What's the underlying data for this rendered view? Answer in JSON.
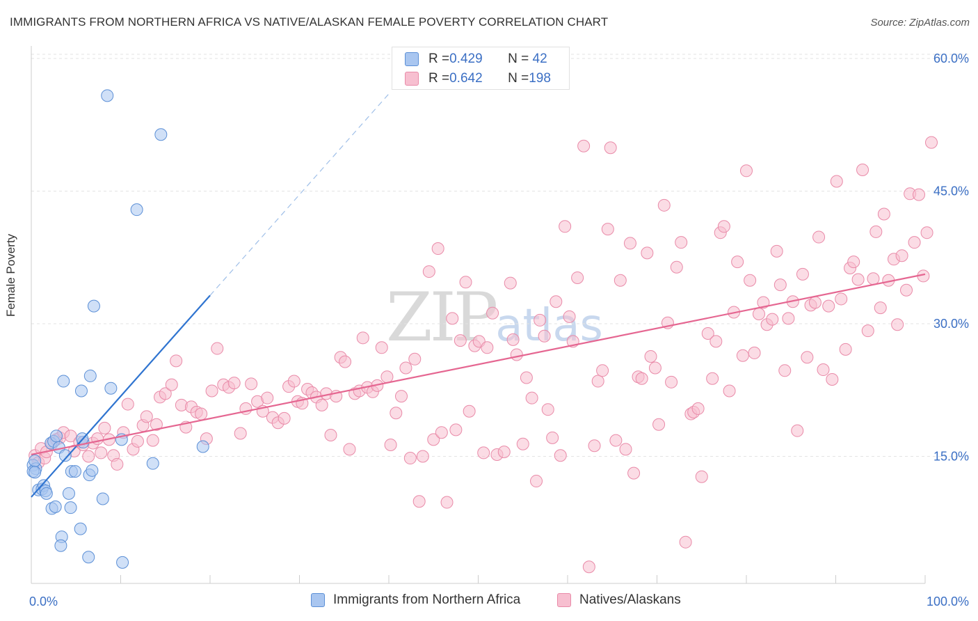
{
  "header": {
    "title": "IMMIGRANTS FROM NORTHERN AFRICA VS NATIVE/ALASKAN FEMALE POVERTY CORRELATION CHART",
    "source": "Source: ZipAtlas.com"
  },
  "watermark": {
    "zip": "ZIP",
    "atlas": "atlas"
  },
  "colors": {
    "blue_fill": "#a9c6f0",
    "blue_stroke": "#5b8fd6",
    "blue_line": "#2f74d0",
    "pink_fill": "#f7bfd0",
    "pink_stroke": "#e98aa8",
    "pink_line": "#e56691",
    "tick_label": "#3b6fc4",
    "grid": "#e3e3e3"
  },
  "stats": [
    {
      "r_label": "R = ",
      "r": "0.429",
      "n_label": "N = ",
      "n": " 42"
    },
    {
      "r_label": "R = ",
      "r": "0.642",
      "n_label": "N = ",
      "n": "198"
    }
  ],
  "chart_data": {
    "type": "scatter",
    "title": "IMMIGRANTS FROM NORTHERN AFRICA VS NATIVE/ALASKAN FEMALE POVERTY CORRELATION CHART",
    "xlabel": "",
    "ylabel": "Female Poverty",
    "xlim": [
      0,
      100
    ],
    "ylim": [
      0,
      65
    ],
    "x_tick_labels": [
      "0.0%",
      "100.0%"
    ],
    "y_ticks": [
      15,
      30,
      45,
      60
    ],
    "y_tick_labels": [
      "15.0%",
      "30.0%",
      "45.0%",
      "60.0%"
    ],
    "grid": "horizontal dashed",
    "legend": "bottom-center",
    "series": [
      {
        "name": "Immigrants from Northern Africa",
        "color": "#a9c6f0",
        "trend": {
          "x": [
            0,
            20
          ],
          "y": [
            10.4,
            33.2
          ],
          "dashed_to": [
            40,
            56
          ]
        },
        "points": [
          [
            8.5,
            55.8
          ],
          [
            14.5,
            51.4
          ],
          [
            11.8,
            42.9
          ],
          [
            7.0,
            32.0
          ],
          [
            3.6,
            23.5
          ],
          [
            6.6,
            24.1
          ],
          [
            5.6,
            22.4
          ],
          [
            8.9,
            22.7
          ],
          [
            19.2,
            16.1
          ],
          [
            10.1,
            16.9
          ],
          [
            0.2,
            14.0
          ],
          [
            0.5,
            13.6
          ],
          [
            0.2,
            13.3
          ],
          [
            0.4,
            13.2
          ],
          [
            0.8,
            11.2
          ],
          [
            1.2,
            11.3
          ],
          [
            1.4,
            11.7
          ],
          [
            1.6,
            11.1
          ],
          [
            1.7,
            10.8
          ],
          [
            2.2,
            16.5
          ],
          [
            2.5,
            16.7
          ],
          [
            2.8,
            17.3
          ],
          [
            3.1,
            16.0
          ],
          [
            3.8,
            15.1
          ],
          [
            4.5,
            13.3
          ],
          [
            4.9,
            13.3
          ],
          [
            6.5,
            12.9
          ],
          [
            6.8,
            13.4
          ],
          [
            5.8,
            16.6
          ],
          [
            5.7,
            17.0
          ],
          [
            2.3,
            9.1
          ],
          [
            2.7,
            9.3
          ],
          [
            4.2,
            10.8
          ],
          [
            4.4,
            9.2
          ],
          [
            8.0,
            10.2
          ],
          [
            3.4,
            5.9
          ],
          [
            3.3,
            4.9
          ],
          [
            5.5,
            6.8
          ],
          [
            6.4,
            3.6
          ],
          [
            10.2,
            3.0
          ],
          [
            13.6,
            14.2
          ],
          [
            0.4,
            14.5
          ]
        ]
      },
      {
        "name": "Natives/Alaskans",
        "color": "#f7bfd0",
        "trend": {
          "x": [
            0,
            100
          ],
          "y": [
            15.2,
            35.6
          ]
        },
        "points": [
          [
            0.4,
            15.1
          ],
          [
            0.8,
            14.3
          ],
          [
            1.1,
            15.9
          ],
          [
            1.5,
            14.8
          ],
          [
            1.7,
            15.5
          ],
          [
            2.3,
            16.4
          ],
          [
            2.8,
            16.9
          ],
          [
            3.2,
            17.1
          ],
          [
            3.6,
            17.7
          ],
          [
            4.4,
            17.3
          ],
          [
            4.8,
            15.6
          ],
          [
            5.4,
            16.6
          ],
          [
            5.8,
            16.3
          ],
          [
            6.4,
            15.0
          ],
          [
            6.9,
            16.5
          ],
          [
            7.4,
            17.0
          ],
          [
            7.8,
            15.4
          ],
          [
            8.2,
            18.2
          ],
          [
            8.7,
            16.9
          ],
          [
            9.2,
            15.1
          ],
          [
            9.6,
            14.1
          ],
          [
            10.3,
            17.7
          ],
          [
            10.8,
            20.9
          ],
          [
            11.4,
            15.8
          ],
          [
            11.9,
            16.7
          ],
          [
            12.5,
            18.5
          ],
          [
            12.9,
            19.5
          ],
          [
            13.6,
            16.8
          ],
          [
            14.0,
            18.6
          ],
          [
            14.4,
            21.7
          ],
          [
            15.0,
            22.1
          ],
          [
            15.7,
            23.1
          ],
          [
            16.2,
            25.8
          ],
          [
            16.8,
            20.8
          ],
          [
            17.3,
            18.3
          ],
          [
            17.9,
            20.6
          ],
          [
            18.5,
            20.0
          ],
          [
            19.0,
            19.8
          ],
          [
            19.6,
            17.0
          ],
          [
            20.2,
            22.4
          ],
          [
            20.8,
            27.2
          ],
          [
            21.5,
            23.1
          ],
          [
            22.1,
            22.8
          ],
          [
            22.7,
            23.3
          ],
          [
            23.4,
            17.6
          ],
          [
            24.0,
            20.4
          ],
          [
            24.6,
            23.2
          ],
          [
            25.3,
            21.2
          ],
          [
            25.9,
            20.1
          ],
          [
            26.4,
            21.6
          ],
          [
            27.0,
            19.4
          ],
          [
            27.6,
            18.8
          ],
          [
            28.3,
            19.3
          ],
          [
            28.8,
            22.9
          ],
          [
            29.4,
            23.5
          ],
          [
            29.8,
            21.2
          ],
          [
            30.3,
            21.0
          ],
          [
            30.9,
            22.6
          ],
          [
            31.4,
            22.2
          ],
          [
            31.9,
            21.7
          ],
          [
            32.5,
            20.8
          ],
          [
            33.0,
            22.1
          ],
          [
            33.5,
            17.4
          ],
          [
            34.1,
            21.8
          ],
          [
            34.6,
            26.2
          ],
          [
            35.1,
            25.7
          ],
          [
            35.6,
            15.8
          ],
          [
            36.2,
            22.1
          ],
          [
            36.7,
            22.4
          ],
          [
            37.1,
            28.4
          ],
          [
            37.6,
            22.8
          ],
          [
            38.2,
            22.3
          ],
          [
            38.7,
            23.0
          ],
          [
            39.2,
            27.3
          ],
          [
            39.8,
            24.0
          ],
          [
            40.2,
            16.3
          ],
          [
            40.8,
            19.9
          ],
          [
            41.4,
            21.8
          ],
          [
            41.9,
            25.0
          ],
          [
            42.4,
            14.8
          ],
          [
            42.9,
            26.0
          ],
          [
            43.4,
            9.9
          ],
          [
            43.8,
            15.0
          ],
          [
            44.5,
            35.9
          ],
          [
            45.0,
            16.9
          ],
          [
            45.5,
            38.5
          ],
          [
            45.9,
            17.7
          ],
          [
            46.5,
            9.8
          ],
          [
            47.1,
            30.6
          ],
          [
            47.5,
            18.0
          ],
          [
            48.0,
            28.1
          ],
          [
            48.6,
            34.7
          ],
          [
            49.0,
            20.1
          ],
          [
            49.6,
            27.5
          ],
          [
            50.1,
            28.0
          ],
          [
            50.6,
            15.4
          ],
          [
            51.0,
            27.3
          ],
          [
            51.6,
            31.2
          ],
          [
            52.1,
            15.2
          ],
          [
            52.9,
            15.5
          ],
          [
            53.6,
            34.6
          ],
          [
            53.9,
            28.2
          ],
          [
            54.3,
            26.5
          ],
          [
            55.0,
            16.4
          ],
          [
            55.4,
            23.9
          ],
          [
            56.0,
            21.6
          ],
          [
            56.5,
            12.2
          ],
          [
            56.9,
            30.4
          ],
          [
            57.4,
            28.6
          ],
          [
            57.8,
            20.3
          ],
          [
            58.3,
            17.1
          ],
          [
            58.7,
            32.5
          ],
          [
            59.2,
            15.1
          ],
          [
            59.7,
            41.0
          ],
          [
            60.2,
            30.8
          ],
          [
            60.6,
            28.0
          ],
          [
            61.1,
            35.2
          ],
          [
            61.8,
            50.1
          ],
          [
            62.4,
            2.5
          ],
          [
            63.0,
            16.2
          ],
          [
            63.4,
            23.5
          ],
          [
            63.9,
            24.7
          ],
          [
            64.5,
            40.7
          ],
          [
            64.8,
            49.9
          ],
          [
            65.4,
            16.8
          ],
          [
            65.9,
            34.9
          ],
          [
            66.5,
            15.8
          ],
          [
            67.0,
            39.1
          ],
          [
            67.4,
            13.1
          ],
          [
            67.9,
            24.0
          ],
          [
            68.3,
            23.8
          ],
          [
            68.9,
            38.0
          ],
          [
            69.3,
            26.3
          ],
          [
            69.8,
            25.0
          ],
          [
            70.2,
            18.6
          ],
          [
            70.8,
            43.4
          ],
          [
            71.2,
            30.1
          ],
          [
            71.6,
            23.4
          ],
          [
            72.2,
            36.4
          ],
          [
            72.7,
            39.2
          ],
          [
            73.2,
            5.3
          ],
          [
            73.8,
            19.8
          ],
          [
            74.1,
            20.0
          ],
          [
            74.6,
            20.4
          ],
          [
            75.0,
            12.7
          ],
          [
            75.7,
            28.9
          ],
          [
            76.2,
            23.8
          ],
          [
            76.6,
            28.0
          ],
          [
            77.1,
            40.3
          ],
          [
            77.5,
            41.0
          ],
          [
            78.1,
            22.4
          ],
          [
            78.6,
            31.3
          ],
          [
            79.0,
            37.0
          ],
          [
            79.6,
            26.4
          ],
          [
            80.0,
            47.3
          ],
          [
            80.4,
            34.9
          ],
          [
            80.9,
            26.7
          ],
          [
            81.4,
            31.1
          ],
          [
            81.9,
            32.4
          ],
          [
            82.3,
            29.9
          ],
          [
            82.9,
            30.5
          ],
          [
            83.4,
            38.2
          ],
          [
            83.8,
            34.4
          ],
          [
            84.3,
            24.7
          ],
          [
            84.7,
            30.6
          ],
          [
            85.2,
            32.5
          ],
          [
            85.7,
            17.9
          ],
          [
            86.3,
            35.6
          ],
          [
            86.8,
            26.2
          ],
          [
            87.2,
            32.1
          ],
          [
            87.7,
            32.4
          ],
          [
            88.1,
            39.8
          ],
          [
            88.6,
            24.8
          ],
          [
            89.2,
            32.0
          ],
          [
            89.6,
            23.7
          ],
          [
            90.1,
            46.1
          ],
          [
            90.6,
            32.8
          ],
          [
            91.1,
            27.1
          ],
          [
            91.6,
            36.3
          ],
          [
            92.0,
            37.0
          ],
          [
            92.5,
            35.0
          ],
          [
            93.0,
            47.4
          ],
          [
            93.6,
            29.2
          ],
          [
            94.2,
            35.1
          ],
          [
            94.5,
            40.4
          ],
          [
            95.0,
            31.8
          ],
          [
            95.4,
            42.4
          ],
          [
            95.9,
            34.9
          ],
          [
            96.5,
            37.3
          ],
          [
            96.9,
            29.9
          ],
          [
            97.4,
            37.7
          ],
          [
            97.9,
            33.8
          ],
          [
            98.3,
            44.7
          ],
          [
            98.8,
            39.2
          ],
          [
            99.3,
            44.6
          ],
          [
            99.8,
            35.4
          ],
          [
            100.2,
            40.3
          ],
          [
            100.7,
            50.5
          ]
        ]
      }
    ]
  },
  "legend": {
    "items": [
      {
        "label": "Immigrants from Northern Africa"
      },
      {
        "label": "Natives/Alaskans"
      }
    ]
  }
}
